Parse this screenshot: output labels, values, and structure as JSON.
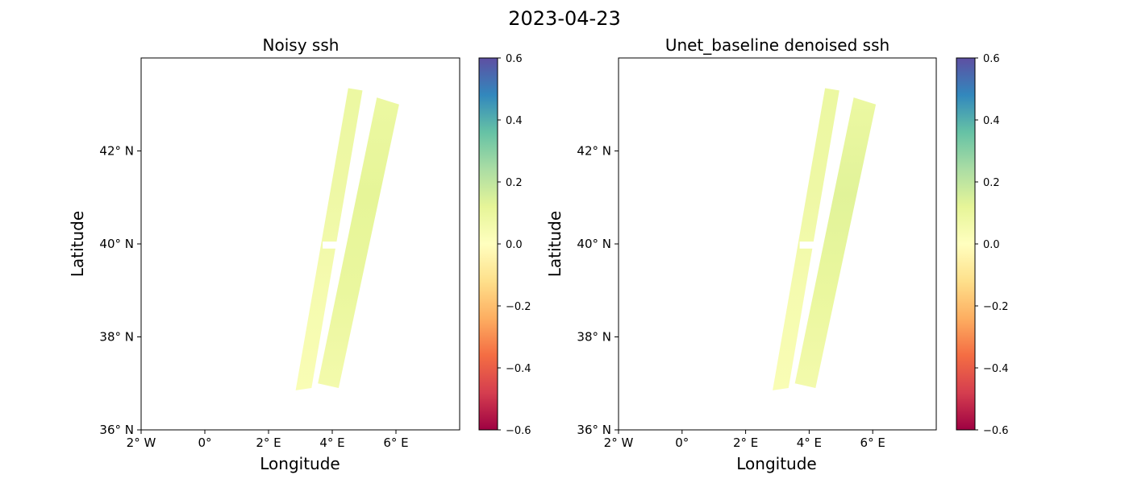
{
  "figure": {
    "title": "2023-04-23"
  },
  "colors": {
    "colormap": "Spectral",
    "cmap_stops": [
      "#9e0142",
      "#d53e4f",
      "#f46d43",
      "#fdae61",
      "#fee08b",
      "#ffffbf",
      "#e6f598",
      "#abdda4",
      "#66c2a5",
      "#3288bd",
      "#5e4fa2"
    ]
  },
  "chart_data": [
    {
      "type": "heatmap",
      "title": "Noisy ssh",
      "xlabel": "Longitude",
      "ylabel": "Latitude",
      "xlim": [
        -2,
        8
      ],
      "ylim": [
        36,
        44
      ],
      "x_ticks": [
        {
          "value": -2,
          "label": "2° W"
        },
        {
          "value": 0,
          "label": "0°"
        },
        {
          "value": 2,
          "label": "2° E"
        },
        {
          "value": 4,
          "label": "4° E"
        },
        {
          "value": 6,
          "label": "6° E"
        }
      ],
      "y_ticks": [
        {
          "value": 36,
          "label": "36° N"
        },
        {
          "value": 38,
          "label": "38° N"
        },
        {
          "value": 40,
          "label": "40° N"
        },
        {
          "value": 42,
          "label": "42° N"
        }
      ],
      "colorbar": {
        "vmin": -0.6,
        "vmax": 0.6,
        "ticks": [
          {
            "value": 0.6,
            "label": "0.6"
          },
          {
            "value": 0.4,
            "label": "0.4"
          },
          {
            "value": 0.2,
            "label": "0.2"
          },
          {
            "value": 0.0,
            "label": "0.0"
          },
          {
            "value": -0.2,
            "label": "−0.2"
          },
          {
            "value": -0.4,
            "label": "−0.4"
          },
          {
            "value": -0.6,
            "label": "−0.6"
          }
        ]
      },
      "swaths": [
        {
          "name": "left swath",
          "corners": [
            [
              4.5,
              43.35
            ],
            [
              4.95,
              43.3
            ],
            [
              3.35,
              36.9
            ],
            [
              2.85,
              36.85
            ]
          ],
          "values_south_to_north": [
            0.03,
            0.05,
            0.08,
            0.09
          ]
        },
        {
          "name": "right swath",
          "corners": [
            [
              5.4,
              43.15
            ],
            [
              6.1,
              43.0
            ],
            [
              4.2,
              36.9
            ],
            [
              3.55,
              37.0
            ]
          ],
          "values_south_to_north": [
            0.06,
            0.1,
            0.12,
            0.09
          ]
        }
      ],
      "gap": {
        "lon": [
          3.7,
          4.25
        ],
        "lat": [
          39.9,
          40.05
        ]
      }
    },
    {
      "type": "heatmap",
      "title": "Unet_baseline denoised ssh",
      "xlabel": "Longitude",
      "ylabel": "Latitude",
      "xlim": [
        -2,
        8
      ],
      "ylim": [
        36,
        44
      ],
      "x_ticks": [
        {
          "value": -2,
          "label": "2° W"
        },
        {
          "value": 0,
          "label": "0°"
        },
        {
          "value": 2,
          "label": "2° E"
        },
        {
          "value": 4,
          "label": "4° E"
        },
        {
          "value": 6,
          "label": "6° E"
        }
      ],
      "y_ticks": [
        {
          "value": 36,
          "label": "36° N"
        },
        {
          "value": 38,
          "label": "38° N"
        },
        {
          "value": 40,
          "label": "40° N"
        },
        {
          "value": 42,
          "label": "42° N"
        }
      ],
      "colorbar": {
        "vmin": -0.6,
        "vmax": 0.6,
        "ticks": [
          {
            "value": 0.6,
            "label": "0.6"
          },
          {
            "value": 0.4,
            "label": "0.4"
          },
          {
            "value": 0.2,
            "label": "0.2"
          },
          {
            "value": 0.0,
            "label": "0.0"
          },
          {
            "value": -0.2,
            "label": "−0.2"
          },
          {
            "value": -0.4,
            "label": "−0.4"
          },
          {
            "value": -0.6,
            "label": "−0.6"
          }
        ]
      },
      "swaths": [
        {
          "name": "left swath",
          "corners": [
            [
              4.5,
              43.35
            ],
            [
              4.95,
              43.3
            ],
            [
              3.35,
              36.9
            ],
            [
              2.85,
              36.85
            ]
          ],
          "values_south_to_north": [
            0.03,
            0.05,
            0.08,
            0.09
          ]
        },
        {
          "name": "right swath",
          "corners": [
            [
              5.4,
              43.15
            ],
            [
              6.1,
              43.0
            ],
            [
              4.2,
              36.9
            ],
            [
              3.55,
              37.0
            ]
          ],
          "values_south_to_north": [
            0.06,
            0.1,
            0.13,
            0.09
          ]
        }
      ],
      "gap": {
        "lon": [
          3.7,
          4.25
        ],
        "lat": [
          39.9,
          40.05
        ]
      }
    }
  ]
}
